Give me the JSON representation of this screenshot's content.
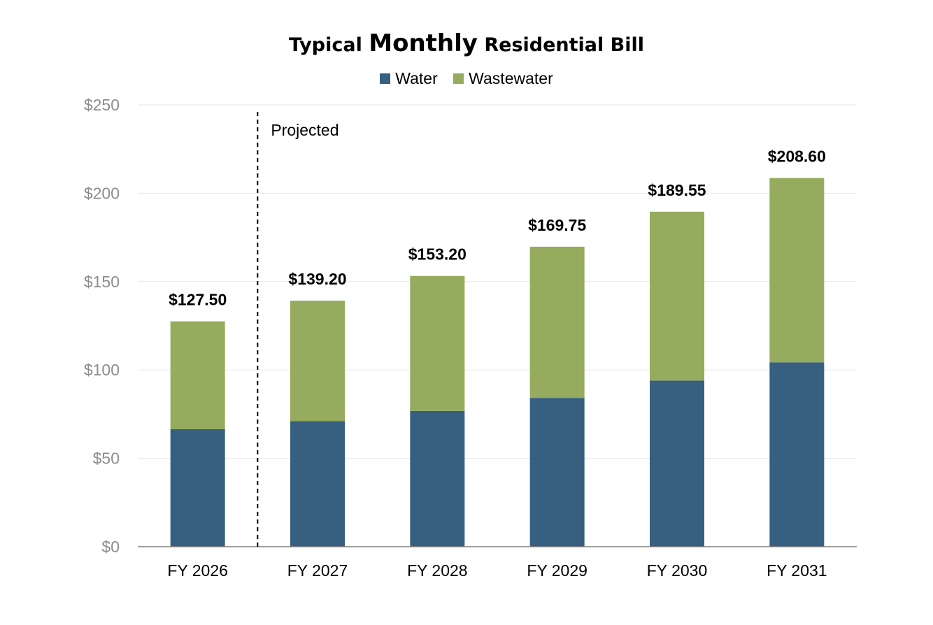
{
  "chart_data": {
    "type": "bar",
    "stacked": true,
    "title_parts": [
      "Typical",
      "Monthly",
      "Residential Bill"
    ],
    "categories": [
      "FY 2026",
      "FY 2027",
      "FY 2028",
      "FY 2029",
      "FY 2030",
      "FY 2031"
    ],
    "series": [
      {
        "name": "Water",
        "color": "#375f7f",
        "values": [
          66.5,
          71.0,
          76.8,
          84.2,
          94.0,
          104.3
        ]
      },
      {
        "name": "Wastewater",
        "color": "#95ab5e",
        "values": [
          61.0,
          68.2,
          76.4,
          85.55,
          95.55,
          104.3
        ]
      }
    ],
    "totals": [
      127.5,
      139.2,
      153.2,
      169.75,
      189.55,
      208.6
    ],
    "total_labels": [
      "$127.50",
      "$139.20",
      "$153.20",
      "$169.75",
      "$189.55",
      "$208.60"
    ],
    "y_ticks": [
      0,
      50,
      100,
      150,
      200,
      250
    ],
    "y_tick_labels": [
      "$0",
      "$50",
      "$100",
      "$150",
      "$200",
      "$250"
    ],
    "ylim": [
      0,
      250
    ],
    "grid": true,
    "legend_position": "top",
    "annotation": {
      "text": "Projected",
      "divider_between": [
        "FY 2026",
        "FY 2027"
      ]
    }
  }
}
